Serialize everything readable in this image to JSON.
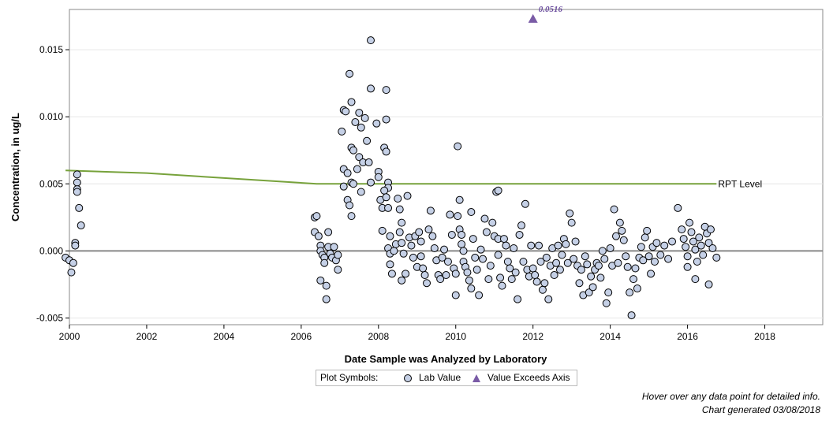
{
  "chart_data": {
    "type": "scatter",
    "xlabel": "Date Sample was Analyzed by Laboratory",
    "ylabel": "Concentration, in ug/L",
    "xlim": [
      2000,
      2019.5
    ],
    "ylim": [
      -0.0055,
      0.018
    ],
    "x_ticks": [
      "2000",
      "2002",
      "2004",
      "2006",
      "2008",
      "2010",
      "2012",
      "2014",
      "2016",
      "2018"
    ],
    "y_ticks": [
      "-0.005",
      "0.000",
      "0.005",
      "0.010",
      "0.015"
    ],
    "zero_line": 0,
    "grid": "horizontal",
    "series": [
      {
        "name": "Lab Value",
        "marker": "circle",
        "fill": "#c5d0e6",
        "points": [
          [
            1999.9,
            -0.0005
          ],
          [
            2000.0,
            -0.0007
          ],
          [
            2000.1,
            -0.0009
          ],
          [
            2000.05,
            -0.0016
          ],
          [
            2000.15,
            0.0006
          ],
          [
            2000.15,
            0.0004
          ],
          [
            2000.2,
            0.0057
          ],
          [
            2000.2,
            0.0051
          ],
          [
            2000.2,
            0.0046
          ],
          [
            2000.2,
            0.0044
          ],
          [
            2000.25,
            0.0032
          ],
          [
            2000.3,
            0.0019
          ],
          [
            2006.35,
            0.0025
          ],
          [
            2006.4,
            0.0026
          ],
          [
            2006.35,
            0.0014
          ],
          [
            2006.45,
            0.0011
          ],
          [
            2006.5,
            0.0004
          ],
          [
            2006.5,
            0.0
          ],
          [
            2006.55,
            -0.0003
          ],
          [
            2006.6,
            -0.0005
          ],
          [
            2006.5,
            -0.0022
          ],
          [
            2006.65,
            -0.0026
          ],
          [
            2006.65,
            -0.0036
          ],
          [
            2006.7,
            0.0014
          ],
          [
            2006.7,
            0.0003
          ],
          [
            2006.75,
            -0.0002
          ],
          [
            2006.8,
            -0.0005
          ],
          [
            2006.85,
            0.0003
          ],
          [
            2006.9,
            -0.0007
          ],
          [
            2006.95,
            -0.0014
          ],
          [
            2006.95,
            -0.0003
          ],
          [
            2006.6,
            -0.0009
          ],
          [
            2007.05,
            0.0089
          ],
          [
            2007.1,
            0.0105
          ],
          [
            2007.1,
            0.0061
          ],
          [
            2007.15,
            0.0104
          ],
          [
            2007.1,
            0.0048
          ],
          [
            2007.2,
            0.0058
          ],
          [
            2007.2,
            0.0038
          ],
          [
            2007.25,
            0.0034
          ],
          [
            2007.3,
            0.0026
          ],
          [
            2007.25,
            0.0132
          ],
          [
            2007.3,
            0.0111
          ],
          [
            2007.3,
            0.0077
          ],
          [
            2007.35,
            0.0075
          ],
          [
            2007.4,
            0.0096
          ],
          [
            2007.45,
            0.0061
          ],
          [
            2007.5,
            0.0103
          ],
          [
            2007.5,
            0.007
          ],
          [
            2007.55,
            0.0092
          ],
          [
            2007.6,
            0.0066
          ],
          [
            2007.65,
            0.0099
          ],
          [
            2007.7,
            0.0082
          ],
          [
            2007.75,
            0.0066
          ],
          [
            2007.8,
            0.0157
          ],
          [
            2007.8,
            0.0121
          ],
          [
            2007.8,
            0.0051
          ],
          [
            2007.55,
            0.0044
          ],
          [
            2007.3,
            0.0051
          ],
          [
            2007.35,
            0.005
          ],
          [
            2007.95,
            0.0095
          ],
          [
            2008.0,
            0.0059
          ],
          [
            2008.0,
            0.0055
          ],
          [
            2008.05,
            0.0038
          ],
          [
            2008.1,
            0.0032
          ],
          [
            2008.1,
            0.0015
          ],
          [
            2008.15,
            0.0077
          ],
          [
            2008.2,
            0.0074
          ],
          [
            2008.2,
            0.0098
          ],
          [
            2008.2,
            0.012
          ],
          [
            2008.25,
            0.0051
          ],
          [
            2008.25,
            0.0047
          ],
          [
            2008.15,
            0.0045
          ],
          [
            2008.2,
            0.004
          ],
          [
            2008.25,
            0.0032
          ],
          [
            2008.3,
            0.0011
          ],
          [
            2008.25,
            0.0002
          ],
          [
            2008.3,
            -0.0002
          ],
          [
            2008.3,
            -0.001
          ],
          [
            2008.35,
            -0.0017
          ],
          [
            2008.4,
            0.0
          ],
          [
            2008.45,
            0.0005
          ],
          [
            2008.5,
            0.0039
          ],
          [
            2008.55,
            0.0031
          ],
          [
            2008.6,
            0.0021
          ],
          [
            2008.55,
            0.0014
          ],
          [
            2008.6,
            0.0006
          ],
          [
            2008.65,
            -0.0002
          ],
          [
            2008.6,
            -0.0022
          ],
          [
            2008.7,
            -0.0017
          ],
          [
            2008.75,
            0.0041
          ],
          [
            2008.8,
            0.001
          ],
          [
            2008.85,
            0.0004
          ],
          [
            2008.9,
            -0.0005
          ],
          [
            2008.95,
            0.0011
          ],
          [
            2009.0,
            -0.0012
          ],
          [
            2009.05,
            0.0014
          ],
          [
            2009.1,
            0.0007
          ],
          [
            2009.1,
            -0.0004
          ],
          [
            2009.15,
            -0.0013
          ],
          [
            2009.2,
            -0.0018
          ],
          [
            2009.25,
            -0.0024
          ],
          [
            2009.3,
            0.0016
          ],
          [
            2009.35,
            0.003
          ],
          [
            2009.4,
            0.0011
          ],
          [
            2009.45,
            0.0002
          ],
          [
            2009.5,
            -0.0007
          ],
          [
            2009.55,
            -0.0018
          ],
          [
            2009.6,
            -0.0021
          ],
          [
            2009.65,
            -0.0005
          ],
          [
            2009.7,
            0.0001
          ],
          [
            2009.75,
            -0.0018
          ],
          [
            2009.8,
            -0.0008
          ],
          [
            2009.85,
            0.0027
          ],
          [
            2009.9,
            0.0012
          ],
          [
            2009.95,
            -0.0013
          ],
          [
            2010.0,
            -0.0033
          ],
          [
            2010.0,
            -0.0017
          ],
          [
            2010.05,
            0.0026
          ],
          [
            2010.05,
            0.0078
          ],
          [
            2010.1,
            0.0038
          ],
          [
            2010.1,
            0.0016
          ],
          [
            2010.15,
            0.0012
          ],
          [
            2010.15,
            0.0005
          ],
          [
            2010.2,
            0.0
          ],
          [
            2010.2,
            -0.0008
          ],
          [
            2010.25,
            -0.0012
          ],
          [
            2010.3,
            -0.0016
          ],
          [
            2010.35,
            -0.0022
          ],
          [
            2010.4,
            0.0029
          ],
          [
            2010.4,
            -0.0028
          ],
          [
            2010.45,
            0.0009
          ],
          [
            2010.5,
            -0.0005
          ],
          [
            2010.55,
            -0.0014
          ],
          [
            2010.6,
            -0.0033
          ],
          [
            2010.65,
            0.0001
          ],
          [
            2010.7,
            -0.0006
          ],
          [
            2010.75,
            0.0024
          ],
          [
            2010.8,
            0.0014
          ],
          [
            2010.85,
            -0.0021
          ],
          [
            2010.9,
            -0.0011
          ],
          [
            2010.95,
            0.0021
          ],
          [
            2011.0,
            0.0011
          ],
          [
            2011.05,
            0.0044
          ],
          [
            2011.1,
            0.0045
          ],
          [
            2011.1,
            0.0009
          ],
          [
            2011.1,
            -0.0003
          ],
          [
            2011.15,
            -0.002
          ],
          [
            2011.2,
            -0.0026
          ],
          [
            2011.25,
            0.0009
          ],
          [
            2011.3,
            0.0004
          ],
          [
            2011.35,
            -0.0008
          ],
          [
            2011.4,
            -0.0013
          ],
          [
            2011.45,
            -0.0021
          ],
          [
            2011.5,
            0.0002
          ],
          [
            2011.55,
            -0.0016
          ],
          [
            2011.6,
            -0.0036
          ],
          [
            2011.65,
            0.0012
          ],
          [
            2011.7,
            0.0019
          ],
          [
            2011.75,
            -0.0008
          ],
          [
            2011.8,
            0.0035
          ],
          [
            2011.85,
            -0.0014
          ],
          [
            2011.9,
            -0.0019
          ],
          [
            2011.95,
            0.0004
          ],
          [
            2012.0,
            -0.0013
          ],
          [
            2012.05,
            -0.0018
          ],
          [
            2012.1,
            -0.0023
          ],
          [
            2012.15,
            0.0004
          ],
          [
            2012.2,
            -0.0008
          ],
          [
            2012.25,
            -0.0029
          ],
          [
            2012.3,
            -0.0024
          ],
          [
            2012.35,
            -0.0005
          ],
          [
            2012.4,
            -0.0036
          ],
          [
            2012.45,
            -0.0011
          ],
          [
            2012.5,
            0.0002
          ],
          [
            2012.55,
            -0.0018
          ],
          [
            2012.6,
            -0.0009
          ],
          [
            2012.65,
            0.0004
          ],
          [
            2012.7,
            -0.0014
          ],
          [
            2012.75,
            -0.0003
          ],
          [
            2012.8,
            0.0009
          ],
          [
            2012.85,
            0.0005
          ],
          [
            2012.9,
            -0.0009
          ],
          [
            2012.95,
            0.0028
          ],
          [
            2013.0,
            0.0021
          ],
          [
            2013.05,
            -0.0006
          ],
          [
            2013.1,
            0.0007
          ],
          [
            2013.15,
            -0.0011
          ],
          [
            2013.2,
            -0.0024
          ],
          [
            2013.25,
            -0.0014
          ],
          [
            2013.3,
            -0.0033
          ],
          [
            2013.35,
            -0.0004
          ],
          [
            2013.4,
            -0.001
          ],
          [
            2013.45,
            -0.0031
          ],
          [
            2013.5,
            -0.0019
          ],
          [
            2013.55,
            -0.0027
          ],
          [
            2013.6,
            -0.0014
          ],
          [
            2013.65,
            -0.0009
          ],
          [
            2013.7,
            -0.0011
          ],
          [
            2013.75,
            -0.002
          ],
          [
            2013.8,
            0.0
          ],
          [
            2013.85,
            -0.0006
          ],
          [
            2013.9,
            -0.0039
          ],
          [
            2013.95,
            -0.0031
          ],
          [
            2014.0,
            0.0002
          ],
          [
            2014.05,
            -0.0011
          ],
          [
            2014.1,
            0.0031
          ],
          [
            2014.15,
            0.0011
          ],
          [
            2014.2,
            -0.0009
          ],
          [
            2014.25,
            0.0021
          ],
          [
            2014.3,
            0.0015
          ],
          [
            2014.35,
            0.0008
          ],
          [
            2014.4,
            -0.0004
          ],
          [
            2014.45,
            -0.0012
          ],
          [
            2014.5,
            -0.0031
          ],
          [
            2014.55,
            -0.0048
          ],
          [
            2014.6,
            -0.0021
          ],
          [
            2014.65,
            -0.0013
          ],
          [
            2014.7,
            -0.0028
          ],
          [
            2014.75,
            -0.0005
          ],
          [
            2014.8,
            0.0003
          ],
          [
            2014.85,
            -0.0007
          ],
          [
            2014.9,
            0.001
          ],
          [
            2014.95,
            0.0015
          ],
          [
            2015.0,
            -0.0004
          ],
          [
            2015.05,
            -0.0017
          ],
          [
            2015.1,
            0.0003
          ],
          [
            2015.15,
            -0.0008
          ],
          [
            2015.2,
            0.0006
          ],
          [
            2015.3,
            -0.0003
          ],
          [
            2015.4,
            0.0004
          ],
          [
            2015.5,
            -0.0006
          ],
          [
            2015.6,
            0.0007
          ],
          [
            2015.75,
            0.0032
          ],
          [
            2015.85,
            0.0016
          ],
          [
            2015.9,
            0.0009
          ],
          [
            2015.95,
            0.0003
          ],
          [
            2016.0,
            -0.0004
          ],
          [
            2016.0,
            -0.0012
          ],
          [
            2016.05,
            0.0021
          ],
          [
            2016.1,
            0.0014
          ],
          [
            2016.15,
            0.0007
          ],
          [
            2016.2,
            0.0001
          ],
          [
            2016.2,
            -0.0021
          ],
          [
            2016.25,
            -0.0008
          ],
          [
            2016.3,
            0.001
          ],
          [
            2016.35,
            0.0004
          ],
          [
            2016.4,
            -0.0003
          ],
          [
            2016.45,
            0.0018
          ],
          [
            2016.5,
            0.0013
          ],
          [
            2016.55,
            0.0006
          ],
          [
            2016.55,
            -0.0025
          ],
          [
            2016.6,
            0.0016
          ],
          [
            2016.65,
            0.0002
          ],
          [
            2016.75,
            -0.0005
          ]
        ]
      },
      {
        "name": "Value Exceeds Axis",
        "marker": "triangle",
        "fill": "#7a5ba6",
        "points": [
          [
            2012.0,
            0.0173
          ]
        ]
      },
      {
        "name": "RPT Level",
        "type": "line",
        "color": "#77a23b",
        "points": [
          [
            1999.9,
            0.006
          ],
          [
            2002.0,
            0.0058
          ],
          [
            2006.4,
            0.005
          ],
          [
            2016.75,
            0.005
          ]
        ]
      }
    ],
    "annotations": [
      {
        "text": "0.0516",
        "x": 2012.0,
        "y": 0.0173,
        "color": "#6d4fa0"
      },
      {
        "text": "RPT Level",
        "x": 2016.75,
        "y": 0.005
      }
    ]
  },
  "legend": {
    "title": "Plot Symbols:",
    "items": [
      {
        "label": "Lab Value"
      },
      {
        "label": "Value Exceeds Axis"
      }
    ]
  },
  "footer": {
    "hover_hint": "Hover over any data point for detailed info.",
    "generated": "Chart generated 03/08/2018"
  }
}
